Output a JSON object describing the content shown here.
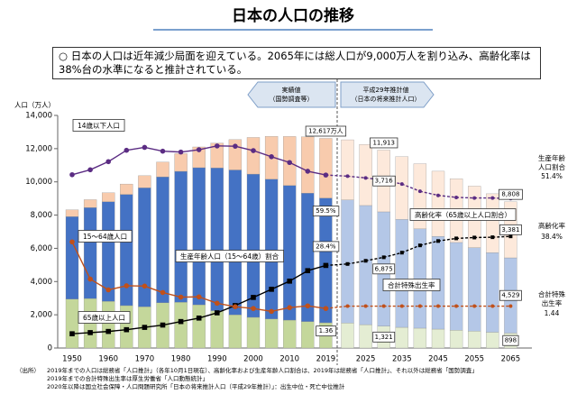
{
  "title": "日本の人口の推移",
  "summary": "○ 日本の人口は近年減少局面を迎えている。2065年には総人口が9,000万人を割り込み、高齢化率は38%台の水準になると推計されている。",
  "chart_data": {
    "type": "bar",
    "y_label": "人口（万人）",
    "actual_label": [
      "実績値",
      "（国勢調査等）"
    ],
    "projected_label": [
      "平成29年推計値",
      "（日本の将来推計人口）"
    ],
    "projected_from": 15,
    "categories": [
      "1950",
      null,
      "1960",
      null,
      "1970",
      null,
      "1980",
      null,
      "1990",
      null,
      "2000",
      null,
      "2010",
      null,
      "2019",
      null,
      "2025",
      null,
      "2035",
      null,
      "2045",
      null,
      "2055",
      null,
      "2065"
    ],
    "ylim": [
      0,
      14000
    ],
    "yticks": [
      0,
      {
        "value": 2000,
        "label": "2,000"
      },
      {
        "value": 4000,
        "label": "4,000"
      },
      {
        "value": 6000,
        "label": "6,000"
      },
      {
        "value": 8000,
        "label": "8,000"
      },
      {
        "value": 10000,
        "label": "10,000"
      },
      {
        "value": 12000,
        "label": "12,000"
      },
      {
        "value": 14000,
        "label": "14,000"
      }
    ],
    "y2lim": [
      0,
      80
    ],
    "y3lim": [
      0,
      8
    ],
    "totals": [
      null,
      null,
      null,
      null,
      null,
      null,
      null,
      null,
      null,
      null,
      null,
      null,
      null,
      null,
      12617,
      null,
      null,
      11913,
      null,
      null,
      null,
      null,
      null,
      null,
      8808
    ],
    "total_labels": [
      null,
      null,
      null,
      null,
      null,
      null,
      null,
      null,
      null,
      null,
      null,
      null,
      null,
      null,
      "12,617万人",
      null,
      null,
      "11,913",
      null,
      null,
      null,
      null,
      null,
      null,
      "8,808"
    ],
    "series": [
      {
        "name": "14歳以下人口",
        "type": "bar",
        "color": "#c4d79b",
        "projected_color": "#e4edd3",
        "values": [
          2943,
          2980,
          2807,
          2553,
          2482,
          2722,
          2751,
          2603,
          2249,
          2001,
          1847,
          1752,
          1680,
          1595,
          1521,
          1507,
          1407,
          1321,
          1246,
          1194,
          1138,
          1077,
          1012,
          951,
          898
        ],
        "value_labels": [
          null,
          null,
          null,
          null,
          null,
          null,
          null,
          null,
          null,
          null,
          null,
          null,
          null,
          null,
          null,
          null,
          null,
          "1,321",
          null,
          null,
          null,
          null,
          null,
          null,
          "898"
        ]
      },
      {
        "name": "15～64歳人口",
        "type": "bar",
        "color": "#4472c4",
        "projected_color": "#b4c7e7",
        "values": [
          4966,
          5473,
          6000,
          6693,
          7157,
          7581,
          7883,
          8251,
          8590,
          8716,
          8622,
          8409,
          8103,
          7728,
          7507,
          7406,
          7170,
          6875,
          6494,
          5978,
          5584,
          5275,
          5028,
          4793,
          4529
        ],
        "value_labels": [
          null,
          null,
          null,
          null,
          null,
          null,
          null,
          null,
          null,
          null,
          null,
          null,
          null,
          null,
          null,
          null,
          null,
          "6,875",
          null,
          null,
          null,
          null,
          null,
          null,
          "4,529"
        ]
      },
      {
        "name": "65歳以上人口",
        "type": "bar",
        "color": "#f8cbad",
        "projected_color": "#fde9db",
        "values": [
          411,
          475,
          535,
          624,
          733,
          887,
          1065,
          1247,
          1489,
          1826,
          2204,
          2576,
          2948,
          3387,
          3589,
          3619,
          3677,
          3716,
          3782,
          3921,
          3919,
          3841,
          3704,
          3540,
          3381
        ],
        "value_labels": [
          null,
          null,
          null,
          null,
          null,
          null,
          null,
          null,
          null,
          null,
          null,
          null,
          null,
          null,
          null,
          null,
          null,
          "3,716",
          null,
          null,
          null,
          null,
          null,
          null,
          "3,381"
        ]
      },
      {
        "name": "生産年齢人口（15～64歳）割合",
        "short_name": [
          "生産年齢",
          "人口割合"
        ],
        "type": "line",
        "axis": "y2",
        "color": "#5b2c83",
        "marker": "circle",
        "values": [
          59.6,
          61.3,
          64.1,
          68.0,
          69.0,
          67.7,
          67.4,
          68.2,
          69.5,
          69.4,
          67.9,
          65.8,
          63.8,
          60.8,
          59.5,
          59.1,
          58.5,
          57.7,
          56.4,
          53.9,
          52.5,
          51.8,
          51.6,
          51.6,
          51.4
        ],
        "value_labels": [
          null,
          null,
          null,
          null,
          null,
          null,
          null,
          null,
          null,
          null,
          null,
          null,
          null,
          null,
          "59.5%",
          null,
          null,
          null,
          null,
          null,
          null,
          null,
          null,
          null,
          "51.4%"
        ]
      },
      {
        "name": "高齢化率（65歳以上人口割合）",
        "short_name": [
          "高齢化率"
        ],
        "type": "line",
        "axis": "y2",
        "color": "#000000",
        "marker": "square",
        "values": [
          4.9,
          5.3,
          5.7,
          6.3,
          7.1,
          7.9,
          9.1,
          10.3,
          12.1,
          14.6,
          17.4,
          20.2,
          23.0,
          26.6,
          28.4,
          28.9,
          30.0,
          31.2,
          32.8,
          35.3,
          36.8,
          37.7,
          38.0,
          38.1,
          38.4
        ],
        "value_labels": [
          null,
          null,
          null,
          null,
          null,
          null,
          null,
          null,
          null,
          null,
          null,
          null,
          null,
          null,
          "28.4%",
          null,
          null,
          null,
          null,
          null,
          null,
          null,
          null,
          null,
          "38.4%"
        ]
      },
      {
        "name": "合計特殊出生率",
        "short_name": [
          "合計特殊",
          "出生率"
        ],
        "type": "line",
        "axis": "y3",
        "color": "#c0501a",
        "marker": "circle",
        "values": [
          3.65,
          2.37,
          2.0,
          2.14,
          2.13,
          1.91,
          1.75,
          1.76,
          1.54,
          1.42,
          1.36,
          1.26,
          1.39,
          1.45,
          1.36,
          1.44,
          1.44,
          1.44,
          1.44,
          1.44,
          1.44,
          1.44,
          1.44,
          1.44,
          1.44
        ],
        "value_labels": [
          null,
          null,
          null,
          null,
          null,
          null,
          null,
          null,
          null,
          null,
          null,
          null,
          null,
          null,
          "1.36",
          null,
          null,
          null,
          null,
          null,
          null,
          null,
          null,
          null,
          "1.44"
        ]
      }
    ]
  },
  "source": {
    "label": "（出所）",
    "lines": [
      "2019年までの人口は総務省「人口推計」（各年10月1日現在）、高齢化率および生産年齢人口割合は、2019年は総務省「人口推計」、それ以外は総務省「国勢調査」",
      "2019年までの合計特殊出生率は厚生労働省「人口動態統計」",
      "2020年以降は国立社会保障・人口問題研究所「日本の将来推計人口（平成29年推計）」：出生中位・死亡中位推計"
    ]
  }
}
